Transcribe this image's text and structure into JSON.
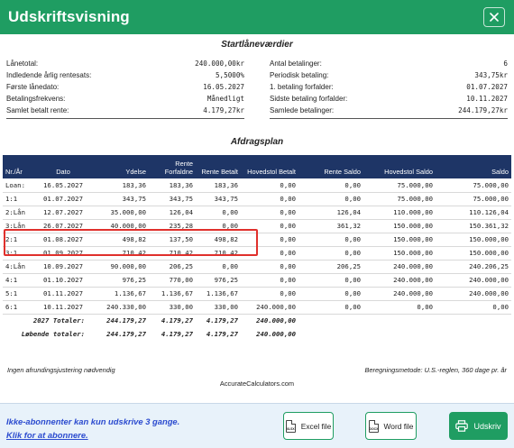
{
  "window": {
    "title": "Udskriftsvisning",
    "close_glyph": "✕"
  },
  "start_section_title": "Startlåneværdier",
  "summary_left": [
    {
      "label": "Lånetotal:",
      "value": "240.000,00kr"
    },
    {
      "label": "Indledende årlig rentesats:",
      "value": "5,5000%"
    },
    {
      "label": "Første lånedato:",
      "value": "16.05.2027"
    },
    {
      "label": "Betalingsfrekvens:",
      "value": "Månedligt"
    },
    {
      "label": "Samlet betalt rente:",
      "value": "4.179,27kr"
    }
  ],
  "summary_right": [
    {
      "label": "Antal betalinger:",
      "value": "6"
    },
    {
      "label": "Periodisk betaling:",
      "value": "343,75kr"
    },
    {
      "label": "1. betaling forfalder:",
      "value": "01.07.2027"
    },
    {
      "label": "Sidste betaling forfalder:",
      "value": "10.11.2027"
    },
    {
      "label": "Samlede betalinger:",
      "value": "244.179,27kr"
    }
  ],
  "schedule_title": "Afdragsplan",
  "columns": [
    "Nr./År",
    "Dato",
    "Ydelse",
    "Rente Forfaldne",
    "Rente Betalt",
    "Hovedstol Betalt",
    "Rente Saldo",
    "Hovedstol Saldo",
    "Saldo"
  ],
  "rows": [
    [
      "Loan:",
      "16.05.2027",
      "183,36",
      "183,36",
      "183,36",
      "0,00",
      "0,00",
      "75.000,00",
      "75.000,00"
    ],
    [
      "1:1",
      "01.07.2027",
      "343,75",
      "343,75",
      "343,75",
      "0,00",
      "0,00",
      "75.000,00",
      "75.000,00"
    ],
    [
      "2:Lån",
      "12.07.2027",
      "35.000,00",
      "126,04",
      "0,00",
      "0,00",
      "126,04",
      "110.000,00",
      "110.126,04"
    ],
    [
      "3:Lån",
      "26.07.2027",
      "40.000,00",
      "235,28",
      "0,00",
      "0,00",
      "361,32",
      "150.000,00",
      "150.361,32"
    ],
    [
      "2:1",
      "01.08.2027",
      "498,82",
      "137,50",
      "498,82",
      "0,00",
      "0,00",
      "150.000,00",
      "150.000,00"
    ],
    [
      "3:1",
      "01.09.2027",
      "710,42",
      "710,42",
      "710,42",
      "0,00",
      "0,00",
      "150.000,00",
      "150.000,00"
    ],
    [
      "4:Lån",
      "10.09.2027",
      "90.000,00",
      "206,25",
      "0,00",
      "0,00",
      "206,25",
      "240.000,00",
      "240.206,25"
    ],
    [
      "4:1",
      "01.10.2027",
      "976,25",
      "770,00",
      "976,25",
      "0,00",
      "0,00",
      "240.000,00",
      "240.000,00"
    ],
    [
      "5:1",
      "01.11.2027",
      "1.136,67",
      "1.136,67",
      "1.136,67",
      "0,00",
      "0,00",
      "240.000,00",
      "240.000,00"
    ],
    [
      "6:1",
      "10.11.2027",
      "240.330,00",
      "330,00",
      "330,00",
      "240.000,00",
      "0,00",
      "0,00",
      "0,00"
    ]
  ],
  "totals": [
    {
      "label": "2027 Totaler:",
      "values": [
        "244.179,27",
        "4.179,27",
        "4.179,27",
        "240.000,00"
      ]
    },
    {
      "label": "Løbende totaler:",
      "values": [
        "244.179,27",
        "4.179,27",
        "4.179,27",
        "240.000,00"
      ]
    }
  ],
  "footnote_left": "Ingen afrundingsjustering nødvendig",
  "footnote_right": "Beregningsmetode: U.S.-reglen, 360 dage pr. år",
  "brand": "AccurateCalculators.com",
  "footer": {
    "notice": "Ikke-abonnenter kan kun udskrive 3 gange.",
    "subscribe_link": "Klik for at abonnere.",
    "excel_label": "Excel file",
    "excel_icon_text": "XLSX",
    "word_label": "Word file",
    "word_icon_text": "DOCX",
    "print_label": "Udskriv"
  },
  "colors": {
    "accent": "#1f9d62",
    "table_header": "#1e3566",
    "highlight": "#e0302c",
    "link": "#2b4bcf"
  }
}
